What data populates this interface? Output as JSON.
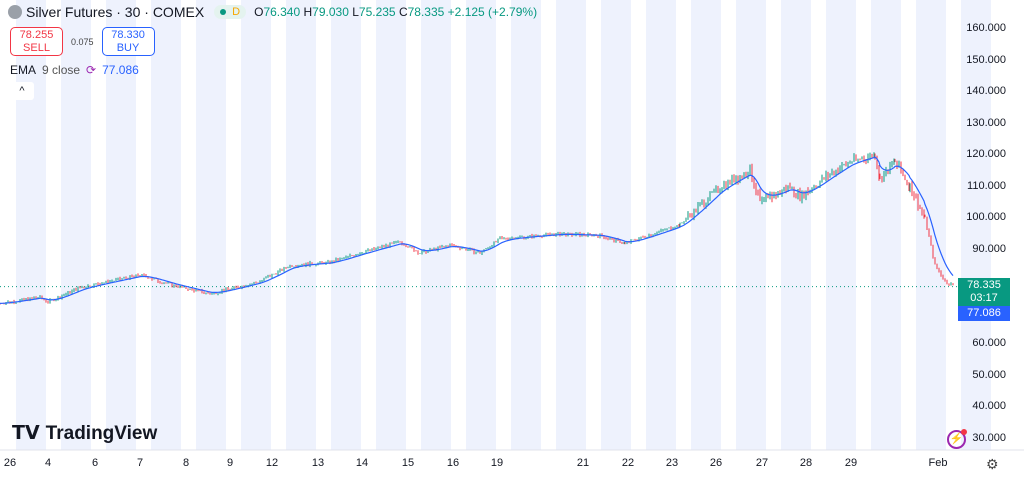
{
  "header": {
    "symbol": "Silver Futures · 30 · COMEX",
    "status_letter": "D",
    "open_label": "O",
    "open": "76.340",
    "high_label": "H",
    "high": "79.030",
    "low_label": "L",
    "low": "75.235",
    "close_label": "C",
    "close": "78.335",
    "change": "+2.125 (+2.79%)"
  },
  "trade": {
    "sell_price": "78.255",
    "sell_label": "SELL",
    "spread": "0.075",
    "buy_price": "78.330",
    "buy_label": "BUY"
  },
  "indicator": {
    "name": "EMA",
    "params": "9 close",
    "value": "77.086"
  },
  "collapse_icon": "^",
  "logo": "TradingView",
  "price_axis": {
    "labels": [
      "160.000",
      "150.000",
      "140.000",
      "130.000",
      "120.000",
      "110.000",
      "100.000",
      "90.000",
      "60.000",
      "50.000",
      "40.000",
      "30.000"
    ]
  },
  "last_price": {
    "price": "78.335",
    "countdown": "03:17",
    "ema": "77.086"
  },
  "time_axis": {
    "labels": [
      "26",
      "4",
      "6",
      "7",
      "8",
      "9",
      "12",
      "13",
      "14",
      "15",
      "16",
      "19",
      "21",
      "22",
      "23",
      "26",
      "27",
      "28",
      "29",
      "Feb"
    ]
  },
  "colors": {
    "up": "#089981",
    "down": "#f23645",
    "ema": "#2962ff",
    "session": "#eef2fd"
  },
  "chart_data": {
    "type": "line",
    "ylim": [
      30,
      160
    ],
    "series": [
      {
        "name": "Silver Futures close",
        "x": [
          0,
          40,
          48,
          80,
          140,
          170,
          210,
          260,
          290,
          330,
          360,
          400,
          420,
          450,
          480,
          500,
          560,
          600,
          625,
          680,
          720,
          750,
          760,
          790,
          800,
          830,
          850,
          875,
          880,
          895,
          910,
          925,
          935,
          945,
          955
        ],
        "values": [
          73,
          75,
          73.5,
          78,
          82,
          79,
          76,
          80,
          85,
          86,
          89,
          92.5,
          89,
          91.5,
          89,
          93.5,
          95,
          94.5,
          92,
          98,
          110,
          115,
          105,
          110,
          107,
          114,
          118,
          120,
          112,
          118,
          110,
          100,
          85,
          80,
          78.3
        ]
      }
    ]
  }
}
